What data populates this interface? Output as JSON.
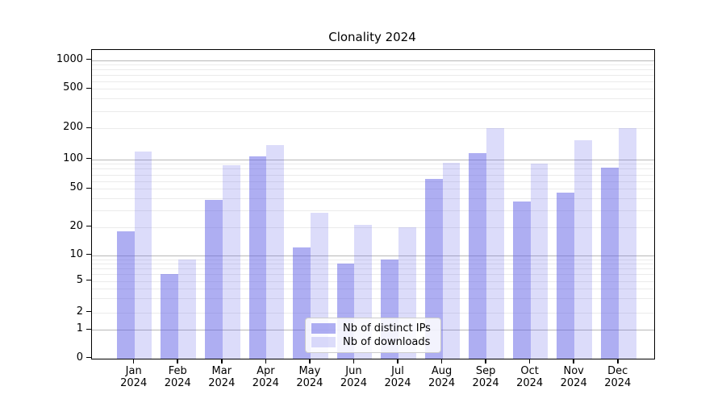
{
  "title": "Clonality 2024",
  "chart_data": {
    "type": "bar",
    "title": "Clonality 2024",
    "grid": true,
    "legend_position": "lower center",
    "y_axis": {
      "scale": "log-like (symlog with 0 baseline)",
      "tick_values": [
        0,
        1,
        2,
        5,
        10,
        20,
        50,
        100,
        200,
        500,
        1000
      ],
      "tick_labels": [
        "0",
        "1",
        "2",
        "5",
        "10",
        "20",
        "50",
        "100",
        "200",
        "500",
        "1000"
      ],
      "ylim": [
        0,
        1400
      ]
    },
    "categories": [
      {
        "month": "Jan",
        "year": "2024"
      },
      {
        "month": "Feb",
        "year": "2024"
      },
      {
        "month": "Mar",
        "year": "2024"
      },
      {
        "month": "Apr",
        "year": "2024"
      },
      {
        "month": "May",
        "year": "2024"
      },
      {
        "month": "Jun",
        "year": "2024"
      },
      {
        "month": "Jul",
        "year": "2024"
      },
      {
        "month": "Aug",
        "year": "2024"
      },
      {
        "month": "Sep",
        "year": "2024"
      },
      {
        "month": "Oct",
        "year": "2024"
      },
      {
        "month": "Nov",
        "year": "2024"
      },
      {
        "month": "Dec",
        "year": "2024"
      }
    ],
    "series": [
      {
        "name": "Nb of distinct IPs",
        "color": "rgba(94,94,230,0.5)",
        "values": [
          18,
          6,
          38,
          107,
          12,
          8,
          9,
          63,
          114,
          37,
          46,
          82
        ]
      },
      {
        "name": "Nb of downloads",
        "color": "rgba(94,94,230,0.22)",
        "values": [
          120,
          9,
          87,
          138,
          28,
          21,
          20,
          93,
          201,
          91,
          153,
          201
        ]
      }
    ]
  }
}
